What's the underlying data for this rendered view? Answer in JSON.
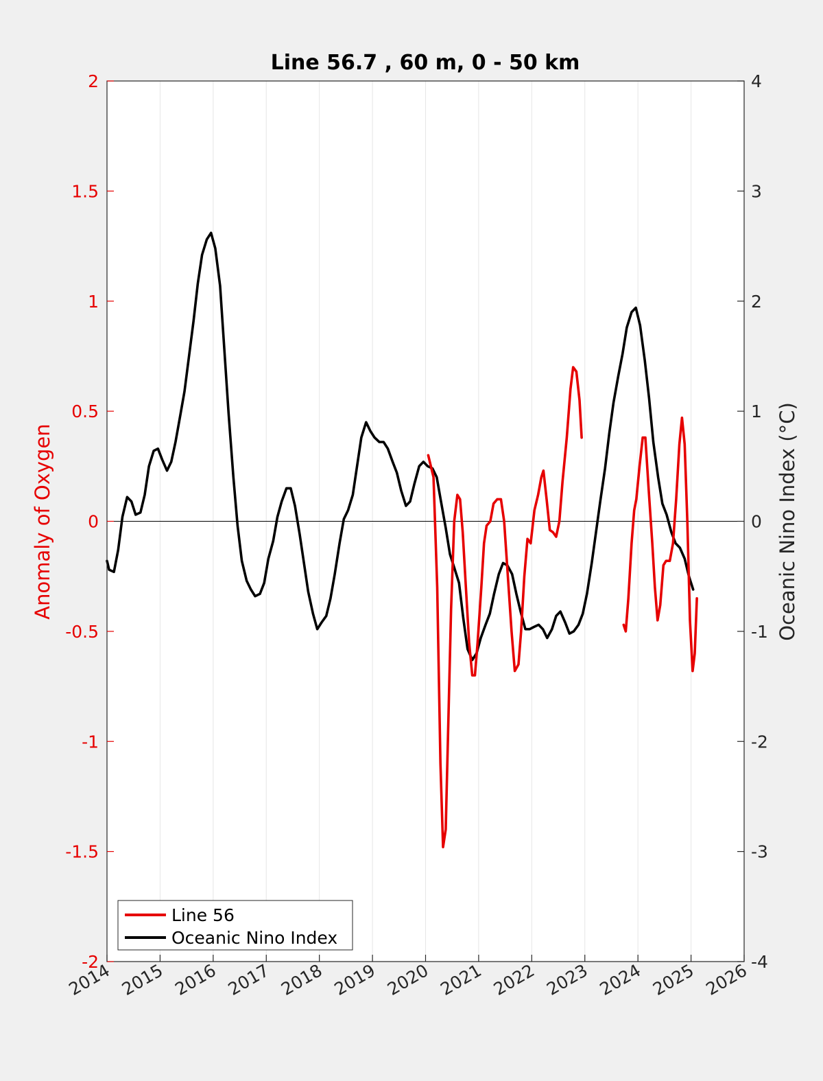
{
  "chart_data": {
    "type": "line",
    "title": "Line 56.7 , 60 m, 0 - 50 km",
    "xlabel": "",
    "ylabel": "Anomaly of Oxygen",
    "y2label": "Oceanic Nino Index (°C)",
    "xlim": [
      2014,
      2026
    ],
    "ylim": [
      -2,
      2
    ],
    "y2lim": [
      -4,
      4
    ],
    "xticks": [
      "2014",
      "2015",
      "2016",
      "2017",
      "2018",
      "2019",
      "2020",
      "2021",
      "2022",
      "2023",
      "2024",
      "2025",
      "2026"
    ],
    "yticks": [
      "-2",
      "-1.5",
      "-1",
      "-0.5",
      "0",
      "0.5",
      "1",
      "1.5",
      "2"
    ],
    "y2ticks": [
      "-4",
      "-3",
      "-2",
      "-1",
      "0",
      "1",
      "2",
      "3",
      "4"
    ],
    "grid": "vertical",
    "legend_position": "bottom-left",
    "colors": {
      "line56": "#e60000",
      "oni": "#000000",
      "left_axis": "#e60000",
      "zero_line": "#000000"
    },
    "series": [
      {
        "name": "Line 56",
        "axis": "left",
        "color": "#e60000",
        "segments": [
          [
            [
              2020.05,
              0.3
            ],
            [
              2020.15,
              0.2
            ],
            [
              2020.22,
              -0.3
            ],
            [
              2020.28,
              -1.1
            ],
            [
              2020.33,
              -1.48
            ],
            [
              2020.38,
              -1.4
            ],
            [
              2020.43,
              -0.9
            ],
            [
              2020.48,
              -0.4
            ],
            [
              2020.54,
              0.0
            ],
            [
              2020.6,
              0.12
            ],
            [
              2020.65,
              0.1
            ],
            [
              2020.7,
              -0.05
            ],
            [
              2020.76,
              -0.3
            ],
            [
              2020.82,
              -0.55
            ],
            [
              2020.88,
              -0.7
            ],
            [
              2020.93,
              -0.7
            ],
            [
              2020.98,
              -0.55
            ],
            [
              2021.05,
              -0.3
            ],
            [
              2021.1,
              -0.1
            ],
            [
              2021.15,
              -0.02
            ],
            [
              2021.22,
              0.0
            ],
            [
              2021.28,
              0.08
            ],
            [
              2021.35,
              0.1
            ],
            [
              2021.42,
              0.1
            ],
            [
              2021.48,
              0.0
            ],
            [
              2021.55,
              -0.25
            ],
            [
              2021.62,
              -0.5
            ],
            [
              2021.68,
              -0.68
            ],
            [
              2021.75,
              -0.65
            ],
            [
              2021.8,
              -0.5
            ],
            [
              2021.86,
              -0.25
            ],
            [
              2021.92,
              -0.08
            ],
            [
              2021.98,
              -0.1
            ],
            [
              2022.05,
              0.05
            ],
            [
              2022.12,
              0.12
            ],
            [
              2022.18,
              0.2
            ],
            [
              2022.22,
              0.23
            ],
            [
              2022.28,
              0.1
            ],
            [
              2022.34,
              -0.04
            ],
            [
              2022.4,
              -0.05
            ],
            [
              2022.46,
              -0.07
            ],
            [
              2022.52,
              0.0
            ],
            [
              2022.58,
              0.18
            ],
            [
              2022.66,
              0.38
            ],
            [
              2022.73,
              0.6
            ],
            [
              2022.78,
              0.7
            ],
            [
              2022.84,
              0.68
            ],
            [
              2022.9,
              0.55
            ],
            [
              2022.94,
              0.38
            ]
          ],
          [
            [
              2023.73,
              -0.47
            ],
            [
              2023.77,
              -0.5
            ],
            [
              2023.82,
              -0.35
            ],
            [
              2023.88,
              -0.1
            ],
            [
              2023.93,
              0.05
            ],
            [
              2023.97,
              0.1
            ],
            [
              2024.03,
              0.25
            ],
            [
              2024.09,
              0.38
            ],
            [
              2024.14,
              0.38
            ],
            [
              2024.2,
              0.15
            ],
            [
              2024.27,
              -0.1
            ],
            [
              2024.32,
              -0.3
            ],
            [
              2024.37,
              -0.45
            ],
            [
              2024.42,
              -0.38
            ],
            [
              2024.48,
              -0.2
            ],
            [
              2024.53,
              -0.18
            ],
            [
              2024.6,
              -0.18
            ],
            [
              2024.66,
              -0.1
            ],
            [
              2024.72,
              0.1
            ],
            [
              2024.78,
              0.35
            ],
            [
              2024.83,
              0.47
            ],
            [
              2024.88,
              0.35
            ],
            [
              2024.93,
              0.0
            ],
            [
              2024.98,
              -0.45
            ],
            [
              2025.03,
              -0.68
            ],
            [
              2025.07,
              -0.6
            ],
            [
              2025.11,
              -0.35
            ]
          ]
        ]
      },
      {
        "name": "Oceanic Nino Index",
        "axis": "right",
        "color": "#000000",
        "segments": [
          [
            [
              2014.0,
              -0.36
            ],
            [
              2014.04,
              -0.44
            ],
            [
              2014.13,
              -0.46
            ],
            [
              2014.21,
              -0.26
            ],
            [
              2014.29,
              0.04
            ],
            [
              2014.38,
              0.22
            ],
            [
              2014.46,
              0.18
            ],
            [
              2014.54,
              0.06
            ],
            [
              2014.63,
              0.08
            ],
            [
              2014.71,
              0.24
            ],
            [
              2014.79,
              0.5
            ],
            [
              2014.88,
              0.64
            ],
            [
              2014.96,
              0.66
            ],
            [
              2015.04,
              0.56
            ],
            [
              2015.13,
              0.46
            ],
            [
              2015.21,
              0.54
            ],
            [
              2015.29,
              0.72
            ],
            [
              2015.38,
              0.96
            ],
            [
              2015.46,
              1.18
            ],
            [
              2015.54,
              1.48
            ],
            [
              2015.63,
              1.82
            ],
            [
              2015.71,
              2.16
            ],
            [
              2015.79,
              2.42
            ],
            [
              2015.88,
              2.56
            ],
            [
              2015.96,
              2.62
            ],
            [
              2016.04,
              2.48
            ],
            [
              2016.13,
              2.14
            ],
            [
              2016.21,
              1.56
            ],
            [
              2016.29,
              0.98
            ],
            [
              2016.38,
              0.4
            ],
            [
              2016.46,
              -0.04
            ],
            [
              2016.54,
              -0.36
            ],
            [
              2016.63,
              -0.54
            ],
            [
              2016.71,
              -0.62
            ],
            [
              2016.79,
              -0.68
            ],
            [
              2016.88,
              -0.66
            ],
            [
              2016.96,
              -0.56
            ],
            [
              2017.04,
              -0.34
            ],
            [
              2017.13,
              -0.18
            ],
            [
              2017.21,
              0.04
            ],
            [
              2017.29,
              0.18
            ],
            [
              2017.38,
              0.3
            ],
            [
              2017.46,
              0.3
            ],
            [
              2017.54,
              0.14
            ],
            [
              2017.63,
              -0.12
            ],
            [
              2017.71,
              -0.38
            ],
            [
              2017.79,
              -0.64
            ],
            [
              2017.88,
              -0.84
            ],
            [
              2017.96,
              -0.98
            ],
            [
              2018.04,
              -0.92
            ],
            [
              2018.13,
              -0.86
            ],
            [
              2018.21,
              -0.7
            ],
            [
              2018.29,
              -0.48
            ],
            [
              2018.38,
              -0.2
            ],
            [
              2018.46,
              0.02
            ],
            [
              2018.54,
              0.1
            ],
            [
              2018.63,
              0.24
            ],
            [
              2018.71,
              0.5
            ],
            [
              2018.79,
              0.76
            ],
            [
              2018.88,
              0.9
            ],
            [
              2018.96,
              0.82
            ],
            [
              2019.04,
              0.76
            ],
            [
              2019.13,
              0.72
            ],
            [
              2019.21,
              0.72
            ],
            [
              2019.29,
              0.66
            ],
            [
              2019.38,
              0.54
            ],
            [
              2019.46,
              0.44
            ],
            [
              2019.54,
              0.28
            ],
            [
              2019.63,
              0.14
            ],
            [
              2019.71,
              0.18
            ],
            [
              2019.79,
              0.34
            ],
            [
              2019.88,
              0.5
            ],
            [
              2019.96,
              0.54
            ],
            [
              2020.04,
              0.5
            ],
            [
              2020.13,
              0.48
            ],
            [
              2020.21,
              0.4
            ],
            [
              2020.29,
              0.18
            ],
            [
              2020.38,
              -0.06
            ],
            [
              2020.46,
              -0.3
            ],
            [
              2020.54,
              -0.42
            ],
            [
              2020.63,
              -0.56
            ],
            [
              2020.71,
              -0.88
            ],
            [
              2020.79,
              -1.16
            ],
            [
              2020.88,
              -1.26
            ],
            [
              2020.96,
              -1.2
            ],
            [
              2021.04,
              -1.06
            ],
            [
              2021.13,
              -0.94
            ],
            [
              2021.21,
              -0.84
            ],
            [
              2021.29,
              -0.66
            ],
            [
              2021.38,
              -0.48
            ],
            [
              2021.46,
              -0.38
            ],
            [
              2021.54,
              -0.4
            ],
            [
              2021.63,
              -0.48
            ],
            [
              2021.71,
              -0.66
            ],
            [
              2021.79,
              -0.82
            ],
            [
              2021.88,
              -0.98
            ],
            [
              2021.96,
              -0.98
            ],
            [
              2022.04,
              -0.96
            ],
            [
              2022.13,
              -0.94
            ],
            [
              2022.21,
              -0.98
            ],
            [
              2022.29,
              -1.06
            ],
            [
              2022.38,
              -0.98
            ],
            [
              2022.46,
              -0.86
            ],
            [
              2022.54,
              -0.82
            ],
            [
              2022.63,
              -0.92
            ],
            [
              2022.71,
              -1.02
            ],
            [
              2022.79,
              -1.0
            ],
            [
              2022.88,
              -0.94
            ],
            [
              2022.96,
              -0.84
            ],
            [
              2023.04,
              -0.66
            ],
            [
              2023.13,
              -0.38
            ],
            [
              2023.21,
              -0.1
            ],
            [
              2023.29,
              0.18
            ],
            [
              2023.38,
              0.48
            ],
            [
              2023.46,
              0.8
            ],
            [
              2023.54,
              1.08
            ],
            [
              2023.63,
              1.32
            ],
            [
              2023.71,
              1.52
            ],
            [
              2023.79,
              1.76
            ],
            [
              2023.88,
              1.9
            ],
            [
              2023.96,
              1.94
            ],
            [
              2024.04,
              1.78
            ],
            [
              2024.13,
              1.46
            ],
            [
              2024.21,
              1.12
            ],
            [
              2024.29,
              0.72
            ],
            [
              2024.38,
              0.4
            ],
            [
              2024.46,
              0.16
            ],
            [
              2024.54,
              0.06
            ],
            [
              2024.63,
              -0.1
            ],
            [
              2024.71,
              -0.2
            ],
            [
              2024.79,
              -0.24
            ],
            [
              2024.88,
              -0.34
            ],
            [
              2024.96,
              -0.5
            ],
            [
              2025.04,
              -0.62
            ]
          ]
        ]
      }
    ]
  }
}
